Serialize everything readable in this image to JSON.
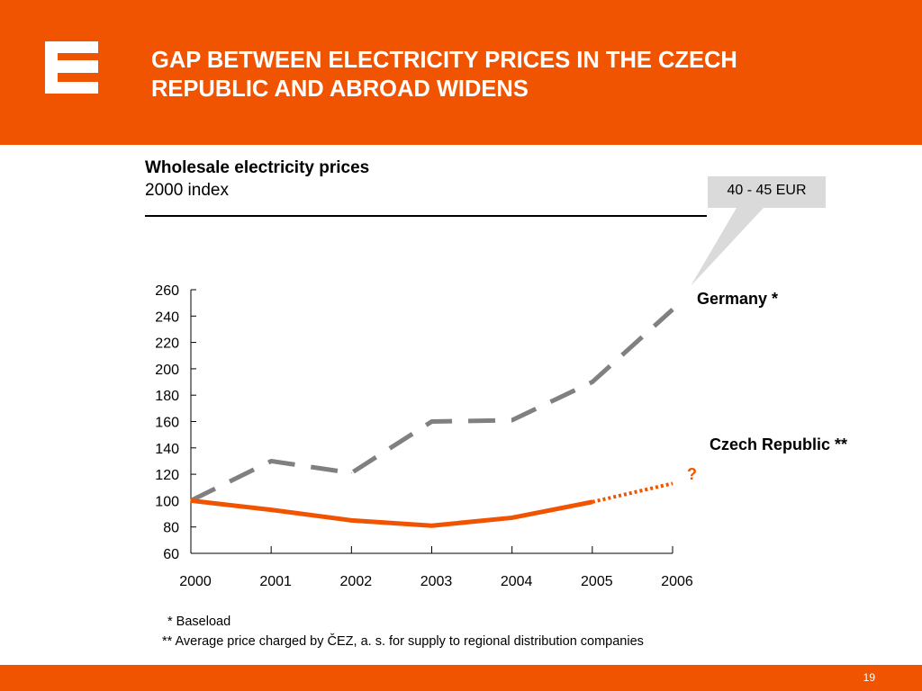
{
  "header": {
    "title_line1": "GAP BETWEEN ELECTRICITY PRICES IN THE CZECH",
    "title_line2": "REPUBLIC AND ABROAD WIDENS",
    "brand_color": "#f05400",
    "logo_icon": "cez-logo-icon"
  },
  "chart_data": {
    "type": "line",
    "title": "Wholesale electricity prices",
    "subtitle": "2000 index",
    "x": [
      "2000",
      "2001",
      "2002",
      "2003",
      "2004",
      "2005",
      "2006"
    ],
    "ylim": [
      60,
      260
    ],
    "yticks": [
      60,
      80,
      100,
      120,
      140,
      160,
      180,
      200,
      220,
      240,
      260
    ],
    "grid": false,
    "series": [
      {
        "name": "Germany *",
        "values": [
          100,
          130,
          121,
          160,
          161,
          190,
          245
        ],
        "color": "#808080",
        "style": "dashed"
      },
      {
        "name": "Czech Republic **",
        "values": [
          100,
          93,
          85,
          81,
          87,
          99,
          113
        ],
        "color": "#f05400",
        "style": "solid",
        "projected_from": "2005",
        "projected_label": "?"
      }
    ],
    "callout": "40 - 45 EUR"
  },
  "footnotes": {
    "note1": "* Baseload",
    "note2": "** Average price charged by ČEZ, a. s. for supply to regional distribution companies"
  },
  "footer": {
    "page_number": "19"
  }
}
